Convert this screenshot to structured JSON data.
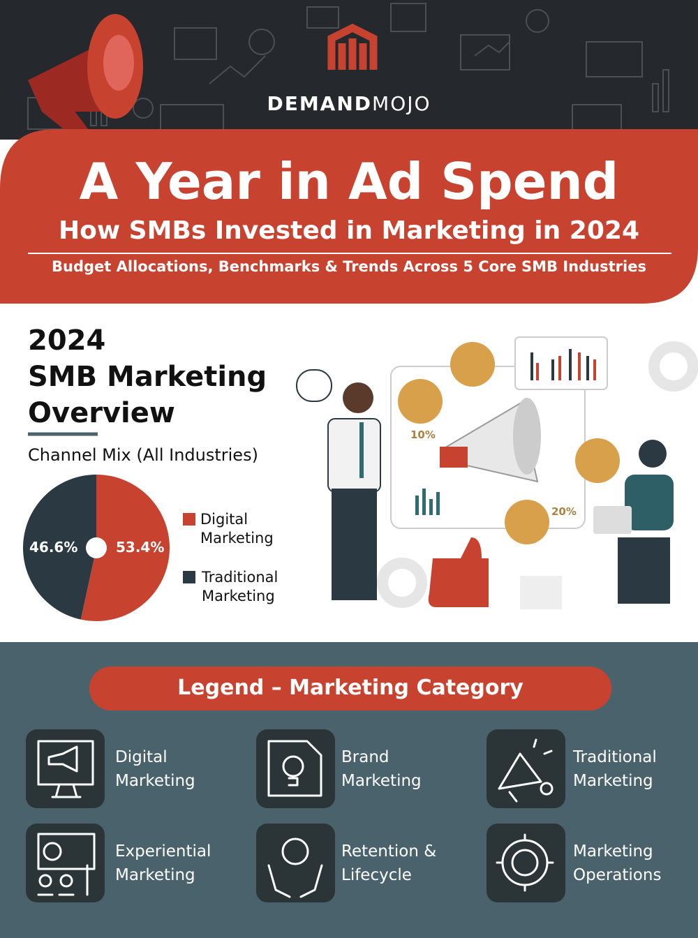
{
  "header": {
    "brand": [
      "DEMAND",
      "MOJO"
    ],
    "title": "A Year in Ad Spend",
    "subtitle": "How SMBs Invested in Marketing in 2024",
    "tagline": "Budget Allocations, Benchmarks & Trends Across 5 Core SMB Industries"
  },
  "overview": {
    "heading": [
      "2024",
      "SMB Marketing",
      "Overview"
    ],
    "chart": {
      "type": "pie",
      "title": "Channel Mix (All Industries)",
      "categories": [
        "Digital Marketing",
        "Traditional Marketing"
      ],
      "values": [
        53.4,
        46.6
      ],
      "value_labels": [
        "53.4%",
        "46.6%"
      ],
      "colors": [
        "#c8432f",
        "#2b3a42"
      ]
    },
    "illustration": {
      "badges": [
        "10%",
        "20%"
      ]
    }
  },
  "legend": {
    "title": "Legend – Marketing Category",
    "items": [
      [
        "Digital",
        "Marketing"
      ],
      [
        "Brand",
        "Marketing"
      ],
      [
        "Traditional",
        "Marketing"
      ],
      [
        "Experiential",
        "Marketing"
      ],
      [
        "Retention &",
        "Lifecycle"
      ],
      [
        "Marketing",
        "Operations"
      ]
    ]
  }
}
